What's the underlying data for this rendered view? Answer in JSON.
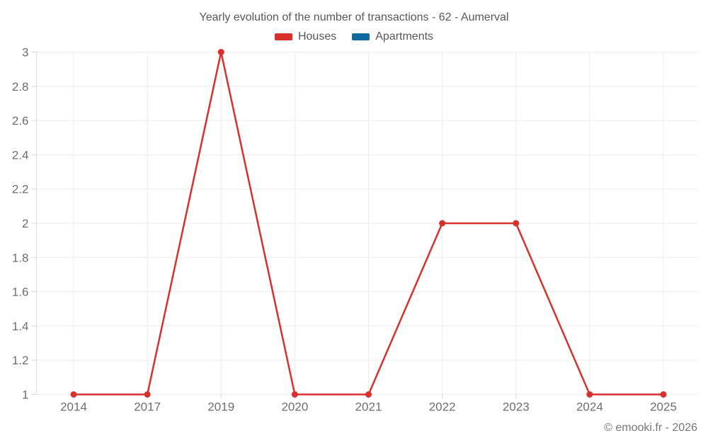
{
  "title": "Yearly evolution of the number of transactions - 62 - Aumerval",
  "watermark": "© emooki.fr - 2026",
  "chart_data": {
    "type": "line",
    "title": "Yearly evolution of the number of transactions - 62 - Aumerval",
    "xlabel": "",
    "ylabel": "",
    "categories": [
      "2014",
      "2017",
      "2019",
      "2020",
      "2021",
      "2022",
      "2023",
      "2024",
      "2025"
    ],
    "series": [
      {
        "name": "Houses",
        "color": "#d7312e",
        "values": [
          1,
          1,
          3,
          1,
          1,
          2,
          2,
          1,
          1
        ]
      },
      {
        "name": "Apartments",
        "color": "#0f6aa1",
        "values": []
      }
    ],
    "ylim": [
      1,
      3
    ],
    "yticks": [
      "1",
      "1.2",
      "1.4",
      "1.6",
      "1.8",
      "2",
      "2.2",
      "2.4",
      "2.6",
      "2.8",
      "3"
    ],
    "grid": true,
    "legend_position": "top",
    "marker": "circle"
  }
}
